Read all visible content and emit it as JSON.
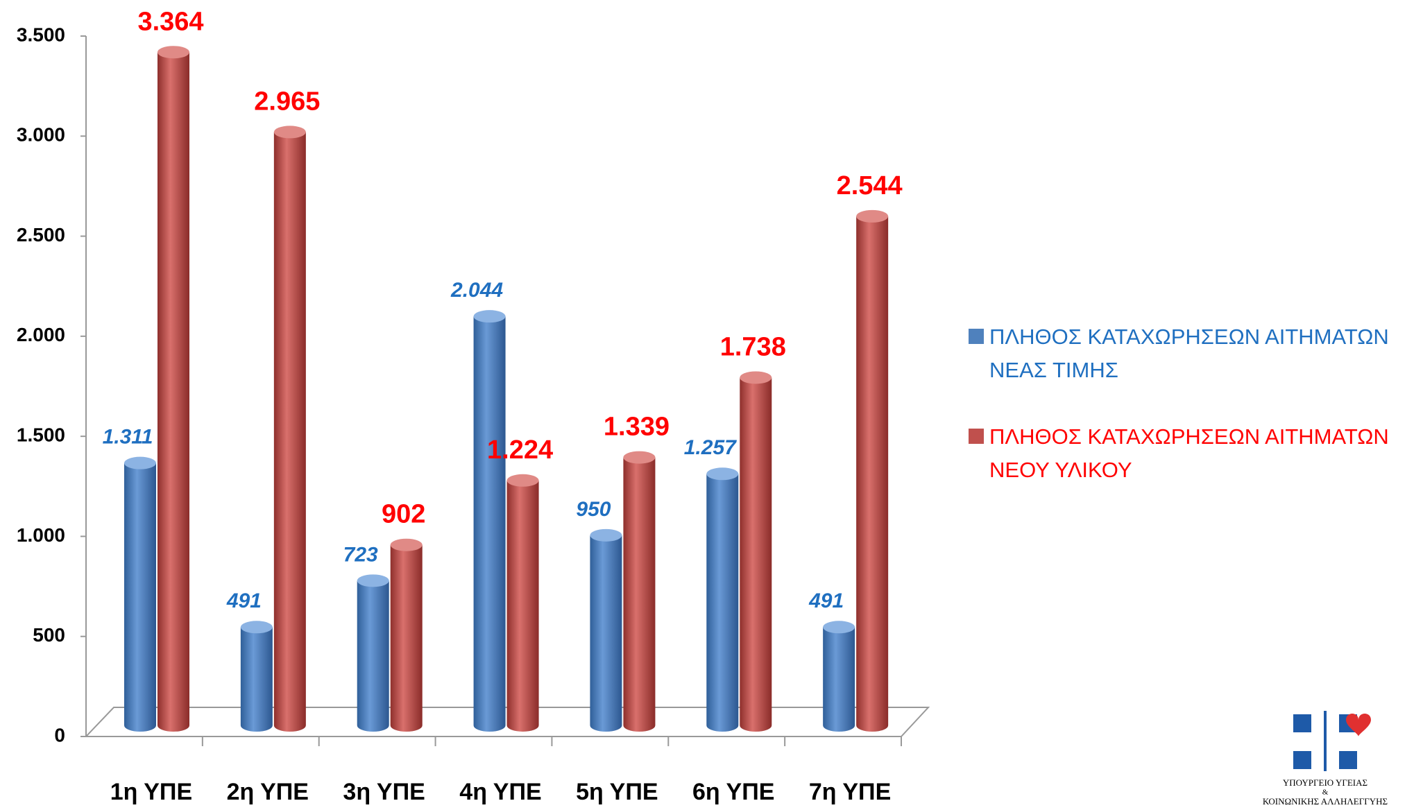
{
  "chart_data": {
    "type": "bar",
    "categories": [
      "1η ΥΠΕ",
      "2η ΥΠΕ",
      "3η ΥΠΕ",
      "4η ΥΠΕ",
      "5η ΥΠΕ",
      "6η ΥΠΕ",
      "7η ΥΠΕ"
    ],
    "series": [
      {
        "name": "ΠΛΗΘΟΣ ΚΑΤΑΧΩΡΗΣΕΩΝ ΑΙΤΗΜΑΤΩΝ ΝΕΑΣ ΤΙΜΗΣ",
        "color": "#4f81bd",
        "label_color": "#1f6fc0",
        "values": [
          1311,
          491,
          723,
          2044,
          950,
          1257,
          491
        ],
        "value_labels": [
          "1.311",
          "491",
          "723",
          "2.044",
          "950",
          "1.257",
          "491"
        ]
      },
      {
        "name": "ΠΛΗΘΟΣ ΚΑΤΑΧΩΡΗΣΕΩΝ ΑΙΤΗΜΑΤΩΝ ΝΕΟΥ ΥΛΙΚΟΥ",
        "color": "#c0504d",
        "label_color": "#ff0000",
        "values": [
          3364,
          2965,
          902,
          1224,
          1339,
          1738,
          2544
        ],
        "value_labels": [
          "3.364",
          "2.965",
          "902",
          "1.224",
          "1.339",
          "1.738",
          "2.544"
        ]
      }
    ],
    "ylim": [
      0,
      3500
    ],
    "yticks": [
      0,
      500,
      {
        "value": 1000,
        "label": "1.000"
      },
      {
        "value": 1500,
        "label": "1.500"
      },
      {
        "value": 2000,
        "label": "2.000"
      },
      {
        "value": 2500,
        "label": "2.500"
      },
      {
        "value": 3000,
        "label": "3.000"
      },
      {
        "value": 3500,
        "label": "3.500"
      }
    ],
    "grid": false,
    "legend": "right",
    "annotations": [
      "ΥΠΟΥΡΓΕΙΟ ΥΓΕΙΑΣ",
      "&",
      "ΚΟΙΝΩΝΙΚΗΣ ΑΛΛΗΛΕΓΓΥΗΣ"
    ]
  }
}
